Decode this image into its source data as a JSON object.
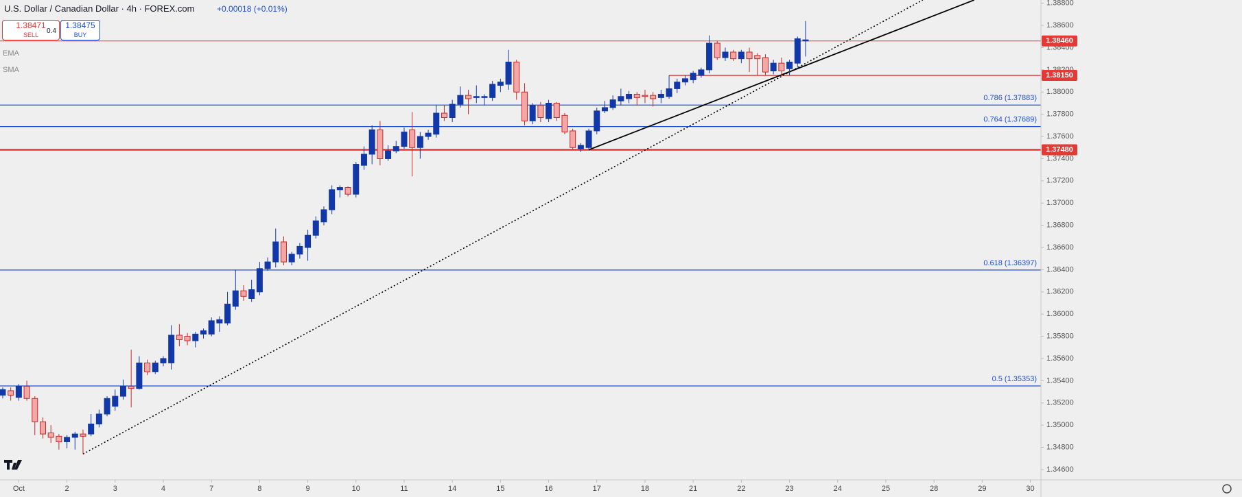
{
  "chart_data": {
    "type": "candlestick",
    "title": "U.S. Dollar / Canadian Dollar · 4h · FOREX.com",
    "change": "+0.00018 (+0.01%)",
    "sell": {
      "price": "1.38471",
      "label": "SELL"
    },
    "spread": "0.4",
    "buy": {
      "price": "1.38475",
      "label": "BUY"
    },
    "indicators": [
      "EMA",
      "SMA"
    ],
    "up_color": "#1238a8",
    "down_color": "#f4a7a7",
    "down_border": "#c62828",
    "x": [
      0,
      1,
      2,
      3,
      4,
      5,
      6,
      7,
      8,
      9,
      10,
      11,
      12,
      13,
      14,
      15,
      16,
      17,
      18,
      19,
      20,
      21,
      22,
      23,
      24,
      25,
      26,
      27,
      28,
      29,
      30,
      31,
      32,
      33,
      34,
      35,
      36,
      37,
      38,
      39,
      40,
      41,
      42,
      43,
      44,
      45,
      46,
      47,
      48,
      49,
      50,
      51,
      52,
      53,
      54,
      55,
      56,
      57,
      58,
      59,
      60,
      61,
      62,
      63,
      64,
      65,
      66,
      67,
      68,
      69,
      70,
      71,
      72,
      73,
      74,
      75,
      76,
      77,
      78,
      79,
      80,
      81,
      82,
      83,
      84,
      85,
      86,
      87,
      88,
      89,
      90,
      91,
      92,
      93,
      94,
      95,
      96,
      97,
      98,
      99,
      100
    ],
    "open": [
      1.3527,
      1.3531,
      1.3525,
      1.3535,
      1.3524,
      1.3503,
      1.3493,
      1.349,
      1.3485,
      1.3489,
      1.3492,
      1.3492,
      1.3501,
      1.351,
      1.3517,
      1.3526,
      1.3535,
      1.3533,
      1.3556,
      1.3548,
      1.3556,
      1.3556,
      1.3581,
      1.358,
      1.3576,
      1.3582,
      1.3582,
      1.3592,
      1.3592,
      1.3607,
      1.3621,
      1.3614,
      1.362,
      1.3641,
      1.3647,
      1.3665,
      1.3647,
      1.3654,
      1.366,
      1.3671,
      1.3683,
      1.3694,
      1.3712,
      1.3714,
      1.3708,
      1.3734,
      1.3744,
      1.3766,
      1.374,
      1.3747,
      1.3751,
      1.3766,
      1.375,
      1.376,
      1.3762,
      1.3781,
      1.3777,
      1.3789,
      1.3797,
      1.3795,
      1.3795,
      1.3795,
      1.3806,
      1.3807,
      1.3827,
      1.38,
      1.3774,
      1.3788,
      1.3776,
      1.379,
      1.3779,
      1.3765,
      1.3749,
      1.375,
      1.3765,
      1.3783,
      1.3786,
      1.3792,
      1.3794,
      1.3798,
      1.3797,
      1.3797,
      1.3795,
      1.3796,
      1.3803,
      1.3809,
      1.3811,
      1.3815,
      1.382,
      1.3844,
      1.3831,
      1.3836,
      1.383,
      1.3836,
      1.3833,
      1.3831,
      1.3819,
      1.3826,
      1.3821,
      1.3826,
      1.3846
    ],
    "high": [
      1.3534,
      1.3534,
      1.3537,
      1.354,
      1.3526,
      1.3507,
      1.35,
      1.3492,
      1.3491,
      1.3494,
      1.3496,
      1.351,
      1.3514,
      1.3526,
      1.3532,
      1.3541,
      1.3568,
      1.3562,
      1.3559,
      1.3558,
      1.3562,
      1.359,
      1.3591,
      1.3583,
      1.3584,
      1.3587,
      1.3597,
      1.3598,
      1.362,
      1.364,
      1.3626,
      1.3631,
      1.3647,
      1.3651,
      1.3677,
      1.367,
      1.3656,
      1.3664,
      1.3676,
      1.3688,
      1.3697,
      1.3716,
      1.3716,
      1.3715,
      1.3737,
      1.3751,
      1.377,
      1.3774,
      1.3752,
      1.3756,
      1.3768,
      1.3782,
      1.3764,
      1.3766,
      1.3788,
      1.3788,
      1.3793,
      1.3805,
      1.3802,
      1.3806,
      1.3798,
      1.381,
      1.3812,
      1.3838,
      1.3829,
      1.3808,
      1.379,
      1.3791,
      1.3793,
      1.3791,
      1.3781,
      1.3767,
      1.3754,
      1.3767,
      1.3786,
      1.3792,
      1.3797,
      1.3803,
      1.3801,
      1.38,
      1.3802,
      1.38,
      1.3802,
      1.3815,
      1.3812,
      1.3815,
      1.3819,
      1.3822,
      1.3851,
      1.3846,
      1.384,
      1.3838,
      1.3838,
      1.384,
      1.3835,
      1.3834,
      1.3829,
      1.3831,
      1.3829,
      1.385,
      1.3864
    ],
    "low": [
      1.3524,
      1.3522,
      1.3522,
      1.3522,
      1.3491,
      1.3488,
      1.3484,
      1.3478,
      1.3479,
      1.3478,
      1.3474,
      1.349,
      1.3498,
      1.3508,
      1.3513,
      1.3523,
      1.3516,
      1.3532,
      1.3545,
      1.3546,
      1.3553,
      1.355,
      1.3571,
      1.3572,
      1.357,
      1.3578,
      1.358,
      1.3584,
      1.359,
      1.3604,
      1.3612,
      1.3611,
      1.3617,
      1.3639,
      1.3642,
      1.3644,
      1.3644,
      1.365,
      1.3648,
      1.3668,
      1.368,
      1.369,
      1.3705,
      1.3706,
      1.3705,
      1.373,
      1.3735,
      1.3734,
      1.3738,
      1.3745,
      1.3749,
      1.3724,
      1.374,
      1.3757,
      1.3759,
      1.3774,
      1.3773,
      1.3786,
      1.378,
      1.379,
      1.3788,
      1.3792,
      1.38,
      1.3802,
      1.3793,
      1.377,
      1.3771,
      1.3773,
      1.3773,
      1.3774,
      1.3762,
      1.3748,
      1.3746,
      1.3748,
      1.3762,
      1.3781,
      1.3784,
      1.3788,
      1.379,
      1.3788,
      1.379,
      1.3787,
      1.379,
      1.3794,
      1.3799,
      1.3806,
      1.3808,
      1.3813,
      1.3817,
      1.3829,
      1.3828,
      1.3828,
      1.3826,
      1.3818,
      1.3815,
      1.3815,
      1.3816,
      1.3815,
      1.3815,
      1.3822,
      1.3832
    ],
    "close": [
      1.3532,
      1.3527,
      1.3535,
      1.3524,
      1.3503,
      1.3492,
      1.3489,
      1.3485,
      1.3489,
      1.3492,
      1.349,
      1.3501,
      1.351,
      1.3524,
      1.3526,
      1.3535,
      1.3533,
      1.3556,
      1.3548,
      1.3556,
      1.356,
      1.3581,
      1.3577,
      1.3576,
      1.3582,
      1.3585,
      1.3594,
      1.3595,
      1.3609,
      1.3621,
      1.3616,
      1.3622,
      1.3641,
      1.3647,
      1.3665,
      1.3647,
      1.3654,
      1.3661,
      1.3671,
      1.3684,
      1.3694,
      1.3712,
      1.3714,
      1.3708,
      1.3735,
      1.3744,
      1.3766,
      1.374,
      1.3747,
      1.3751,
      1.3764,
      1.375,
      1.376,
      1.3763,
      1.3781,
      1.3777,
      1.3789,
      1.3797,
      1.3794,
      1.3796,
      1.3796,
      1.3807,
      1.3809,
      1.3827,
      1.38,
      1.3774,
      1.3788,
      1.3777,
      1.379,
      1.3777,
      1.3764,
      1.375,
      1.3752,
      1.3765,
      1.3783,
      1.3786,
      1.3793,
      1.3796,
      1.3798,
      1.3795,
      1.3796,
      1.3794,
      1.3798,
      1.3803,
      1.3809,
      1.3812,
      1.3817,
      1.382,
      1.3844,
      1.3831,
      1.3836,
      1.383,
      1.3836,
      1.383,
      1.383,
      1.3818,
      1.3826,
      1.3819,
      1.3827,
      1.3848,
      1.3847
    ],
    "xlim": [
      -0.34,
      129.32
    ],
    "ylim": [
      1.34507,
      1.38829
    ],
    "xticks": [
      {
        "value": 2,
        "label": "Oct"
      },
      {
        "value": 8,
        "label": "2"
      },
      {
        "value": 14,
        "label": "3"
      },
      {
        "value": 20,
        "label": "4"
      },
      {
        "value": 26,
        "label": "7"
      },
      {
        "value": 32,
        "label": "8"
      },
      {
        "value": 38,
        "label": "9"
      },
      {
        "value": 44,
        "label": "10"
      },
      {
        "value": 50,
        "label": "11"
      },
      {
        "value": 56,
        "label": "14"
      },
      {
        "value": 62,
        "label": "15"
      },
      {
        "value": 68,
        "label": "16"
      },
      {
        "value": 74,
        "label": "17"
      },
      {
        "value": 80,
        "label": "18"
      },
      {
        "value": 86,
        "label": "21"
      },
      {
        "value": 92,
        "label": "22"
      },
      {
        "value": 98,
        "label": "23"
      },
      {
        "value": 104,
        "label": "24"
      },
      {
        "value": 110,
        "label": "25"
      },
      {
        "value": 116,
        "label": "28"
      },
      {
        "value": 122,
        "label": "29"
      },
      {
        "value": 128,
        "label": "30"
      }
    ],
    "yticks": [
      {
        "value": 1.346,
        "label": "1.34600"
      },
      {
        "value": 1.348,
        "label": "1.34800"
      },
      {
        "value": 1.35,
        "label": "1.35000"
      },
      {
        "value": 1.352,
        "label": "1.35200"
      },
      {
        "value": 1.354,
        "label": "1.35400"
      },
      {
        "value": 1.356,
        "label": "1.35600"
      },
      {
        "value": 1.358,
        "label": "1.35800"
      },
      {
        "value": 1.36,
        "label": "1.36000"
      },
      {
        "value": 1.362,
        "label": "1.36200"
      },
      {
        "value": 1.364,
        "label": "1.36400"
      },
      {
        "value": 1.366,
        "label": "1.36600"
      },
      {
        "value": 1.368,
        "label": "1.36800"
      },
      {
        "value": 1.37,
        "label": "1.37000"
      },
      {
        "value": 1.372,
        "label": "1.37200"
      },
      {
        "value": 1.374,
        "label": "1.37400"
      },
      {
        "value": 1.376,
        "label": "1.37600"
      },
      {
        "value": 1.378,
        "label": "1.37800"
      },
      {
        "value": 1.38,
        "label": "1.38000"
      },
      {
        "value": 1.382,
        "label": "1.38200"
      },
      {
        "value": 1.384,
        "label": "1.38400"
      },
      {
        "value": 1.386,
        "label": "1.38600"
      },
      {
        "value": 1.388,
        "label": "1.38800"
      }
    ],
    "fib_levels": [
      {
        "value": 1.37883,
        "label": "0.786 (1.37883)"
      },
      {
        "value": 1.37689,
        "label": "0.764 (1.37689)"
      },
      {
        "value": 1.36397,
        "label": "0.618 (1.36397)"
      },
      {
        "value": 1.35353,
        "label": "0.5 (1.35353)"
      }
    ],
    "fib_color": "#1e4fd8",
    "price_levels": [
      {
        "value": 1.3846,
        "label": "1.38460",
        "width": 1,
        "start": -0.34
      },
      {
        "value": 1.3815,
        "label": "1.38150",
        "width": 1.5,
        "start": 83
      },
      {
        "value": 1.3748,
        "label": "1.37480",
        "width": 2.5,
        "start": -0.34
      }
    ],
    "level_color": "#e53935",
    "trendlines": [
      {
        "x": [
          73,
          121
        ],
        "y": [
          1.3748,
          1.38829
        ],
        "style": "solid"
      },
      {
        "x": [
          10,
          114.6
        ],
        "y": [
          1.3474,
          1.38829
        ],
        "style": "dotted"
      }
    ]
  }
}
